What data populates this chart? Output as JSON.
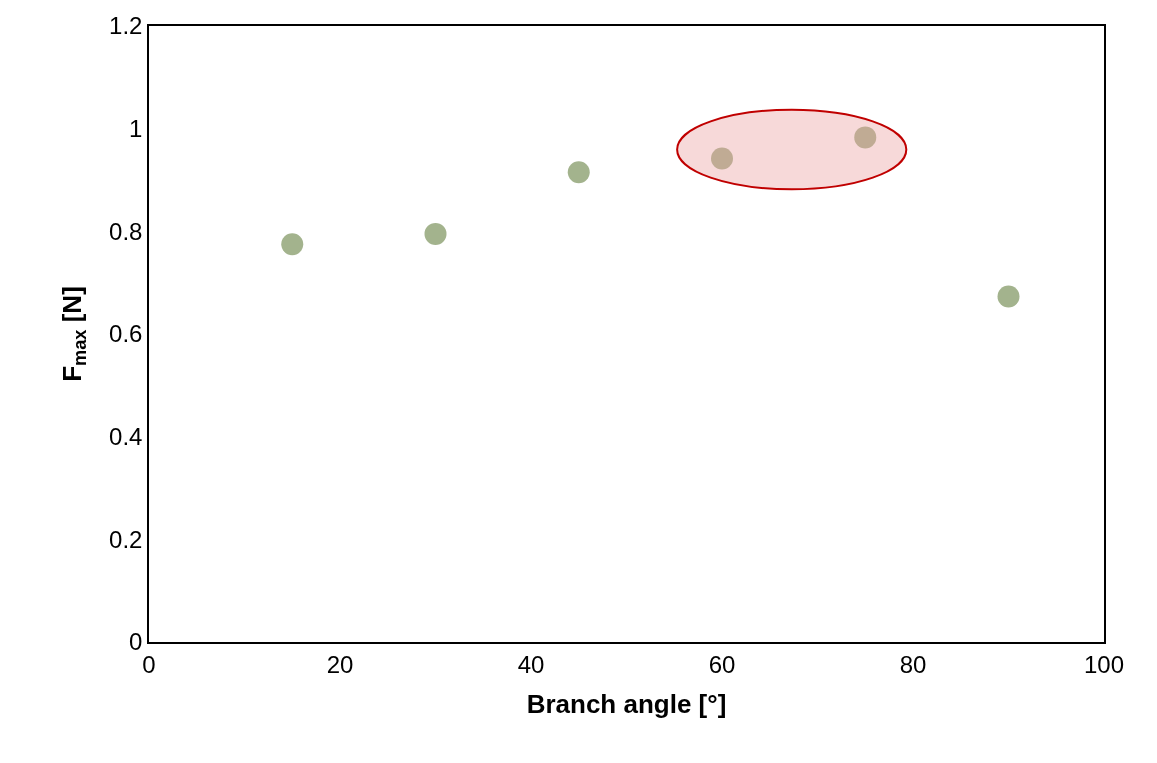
{
  "chart_data": {
    "type": "scatter",
    "xlabel": "Branch angle [°]",
    "ylabel": "F$_{max}$ [N]",
    "x": [
      15,
      30,
      45,
      60,
      75,
      90
    ],
    "series": [
      {
        "color": "#a3b38d",
        "values": [
          0.775,
          0.795,
          0.915,
          0.942,
          0.983,
          0.673
        ]
      }
    ],
    "xlim": [
      0,
      100
    ],
    "xticks": [
      0,
      20,
      40,
      60,
      80,
      100
    ],
    "ylim": [
      0,
      1.2
    ],
    "yticks": [
      0,
      0.2,
      0.4,
      0.6,
      0.8,
      1,
      1.2
    ],
    "marker": "circle"
  }
}
